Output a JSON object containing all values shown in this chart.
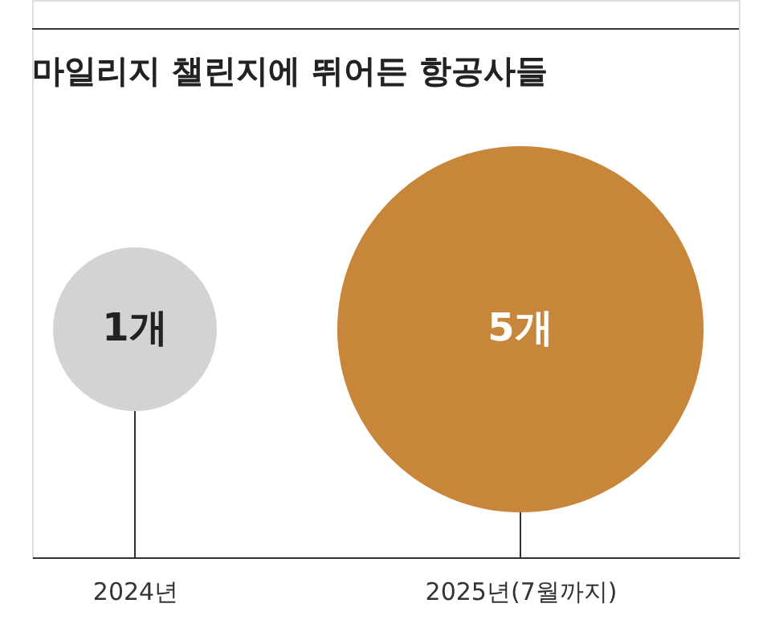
{
  "chart_data": {
    "type": "other",
    "title": "마일리지 챌린지에 뛰어든 항공사들",
    "categories": [
      "2024년",
      "2025년(7월까지)"
    ],
    "values": [
      1,
      5
    ],
    "value_labels": [
      "1개",
      "5개"
    ],
    "colors": [
      "#d3d3d3",
      "#c8863a"
    ]
  }
}
